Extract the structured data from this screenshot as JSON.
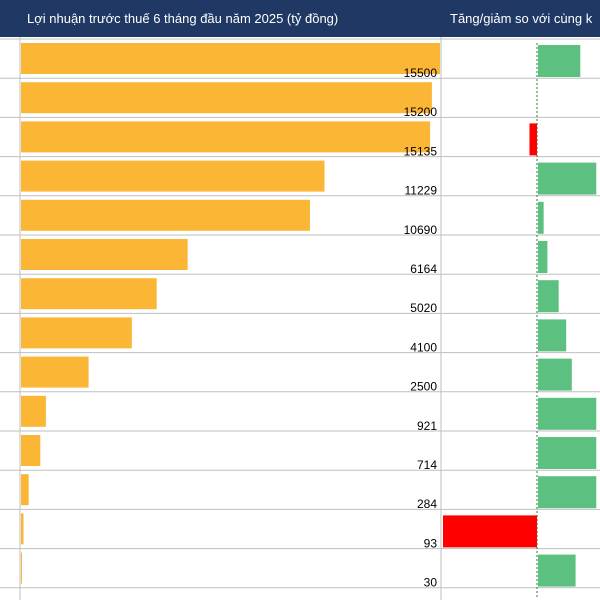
{
  "header": {
    "profit_title": "Lợi nhuận trước thuế 6 tháng đầu năm 2025 (tỷ đồng)",
    "change_title": "Tăng/giảm so với cùng k"
  },
  "colors": {
    "header_bg": "#1f3864",
    "profit_bar": "#fbb635",
    "increase": "#5cc081",
    "decrease": "#ff0000",
    "grid": "#bfbfbf"
  },
  "chart_data": {
    "type": "bar",
    "title": "Lợi nhuận trước thuế 6 tháng đầu năm 2025 (tỷ đồng)",
    "xlim": [
      0,
      15500
    ],
    "values": [
      15500,
      15200,
      15135,
      11229,
      10690,
      6164,
      5020,
      4100,
      2500,
      921,
      714,
      284,
      93,
      30
    ],
    "value_labels": [
      "15500",
      "15200",
      "15135",
      "11229",
      "10690",
      "6164",
      "5020",
      "4100",
      "2500",
      "921",
      "714",
      "284",
      "93",
      "30"
    ],
    "change": {
      "title": "Tăng/giảm so với cùng k",
      "unit": "percent",
      "xlim": [
        -100,
        70
      ],
      "values": [
        45,
        null,
        -8,
        62,
        6,
        10,
        22,
        30,
        36,
        62,
        62,
        62,
        -100,
        40
      ]
    }
  }
}
